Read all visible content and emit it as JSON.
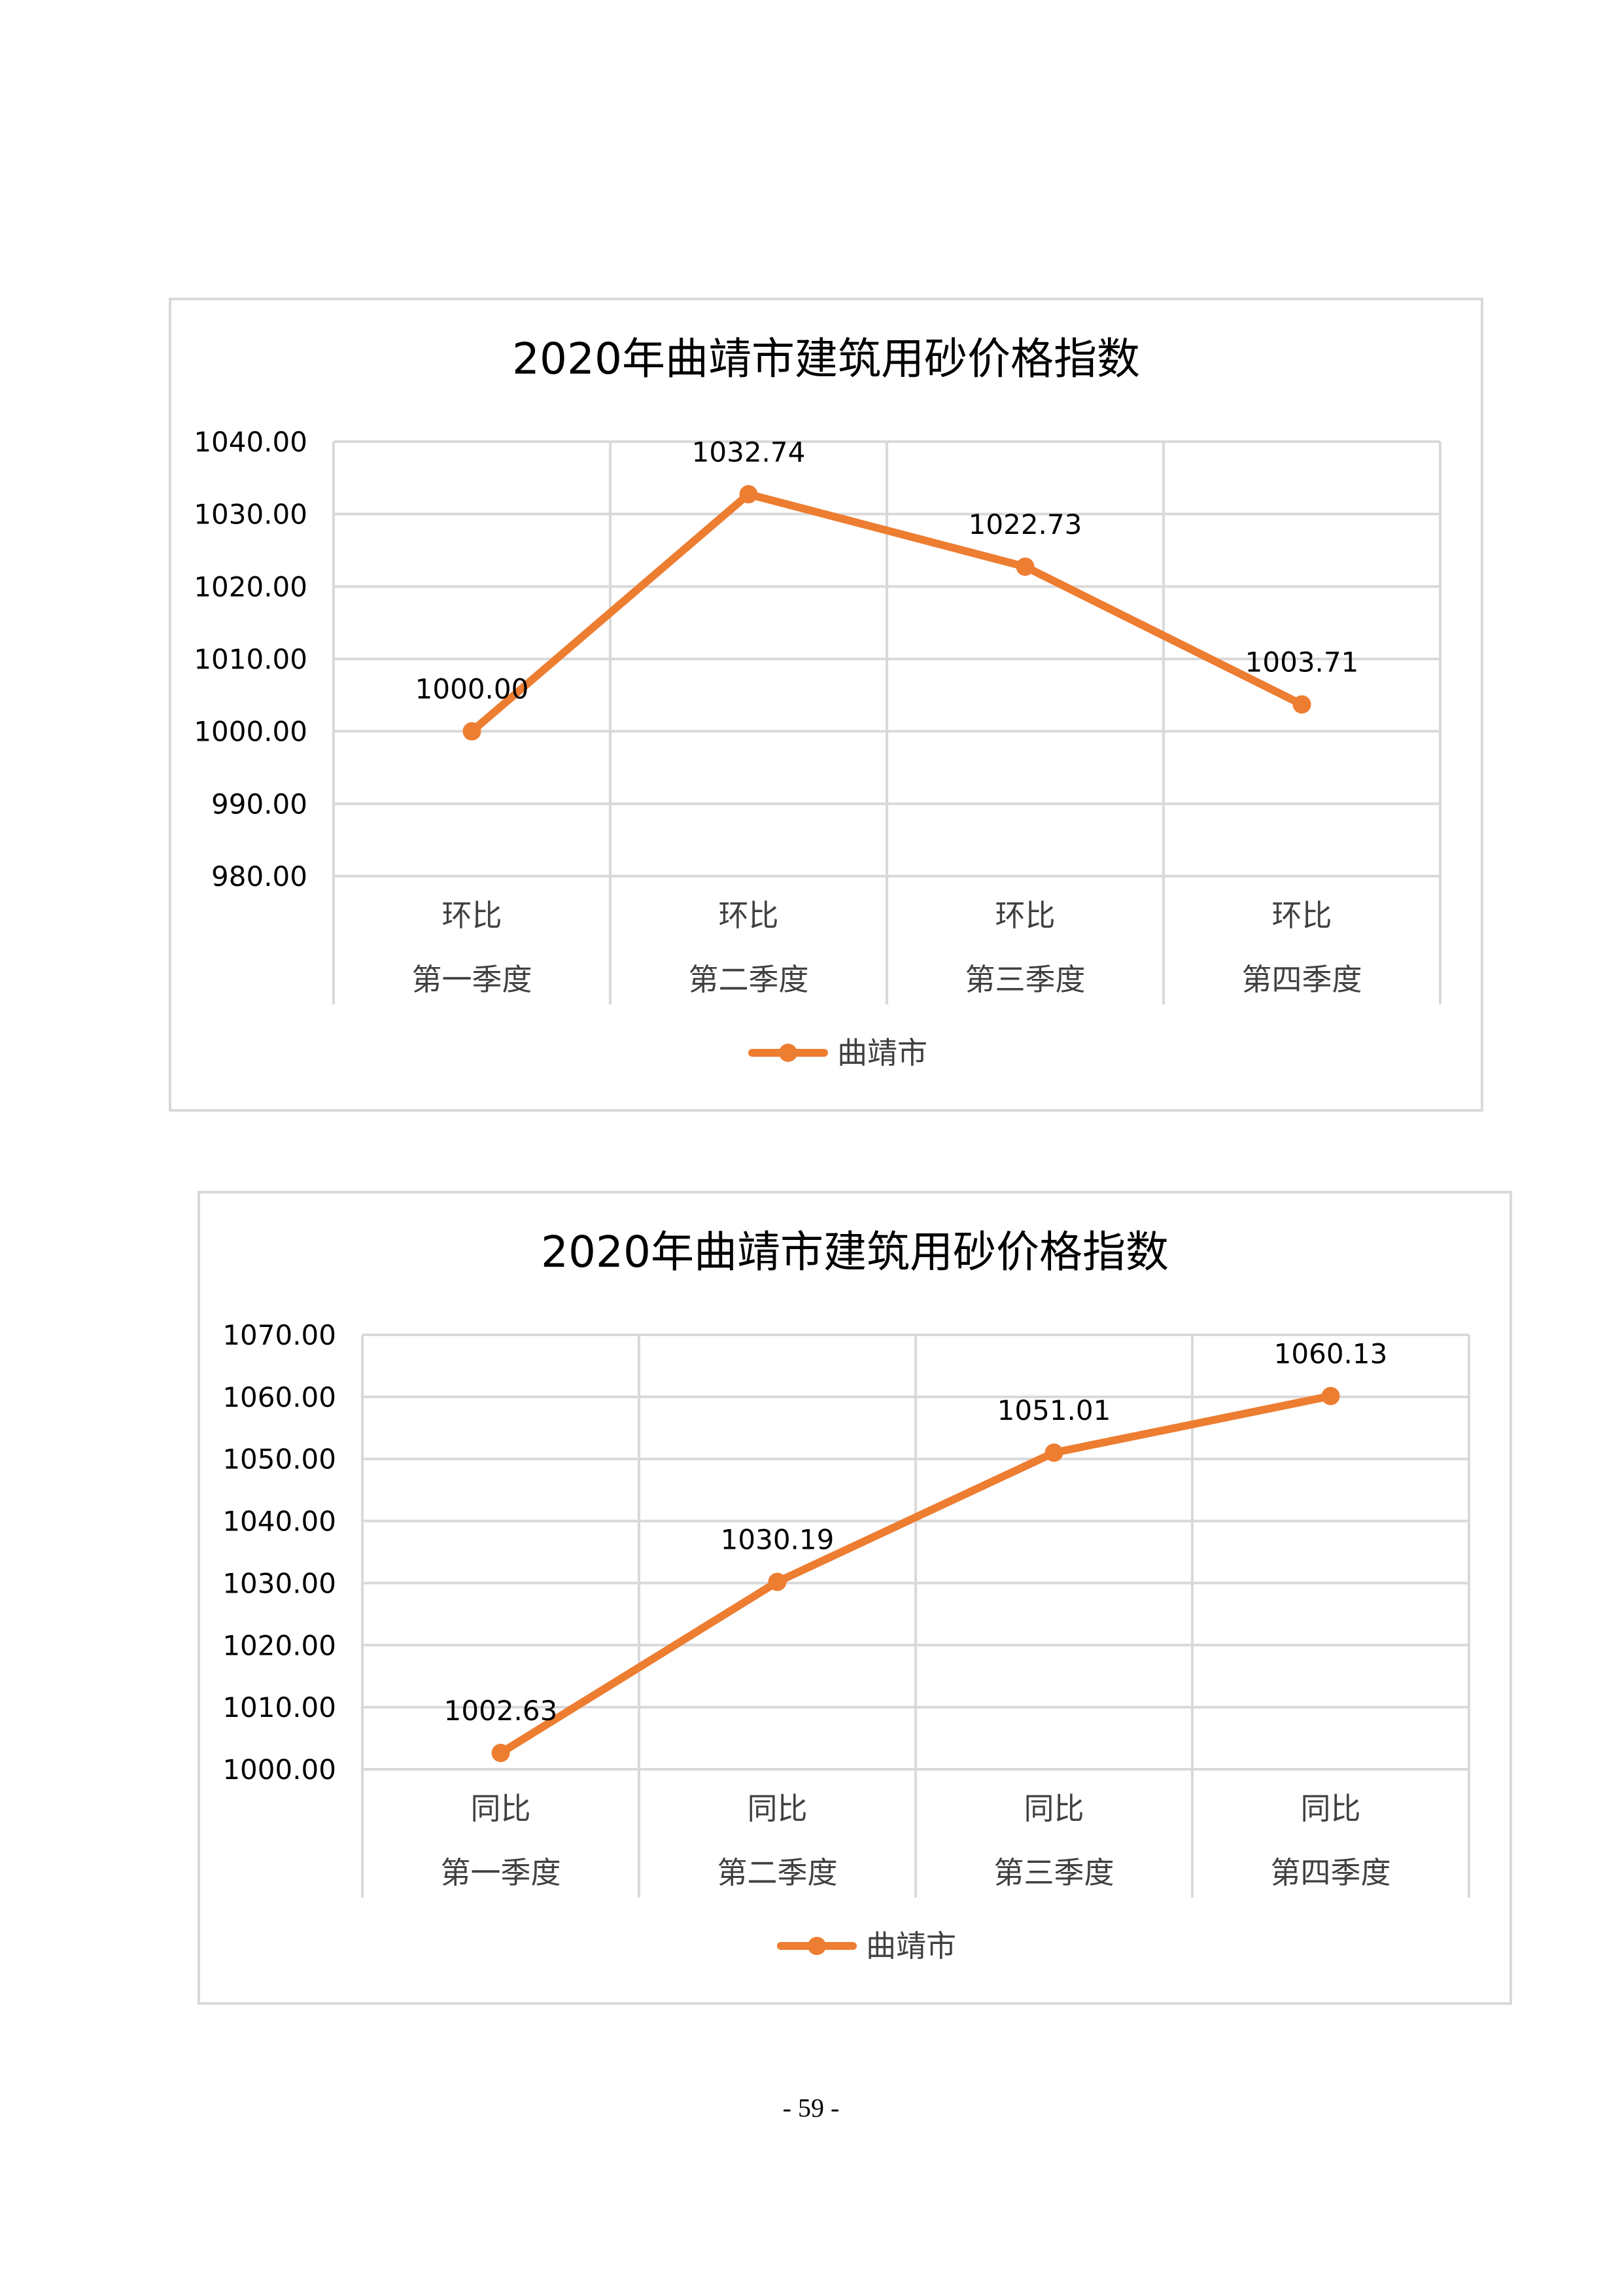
{
  "page": {
    "number": "- 59 -"
  },
  "colors": {
    "series": "#ed7d31",
    "grid": "#d9d9d9",
    "text": "#000000",
    "border": "#d9d9d9"
  },
  "chart_data": [
    {
      "type": "line",
      "title": "2020年曲靖市建筑用砂价格指数",
      "categories": [
        [
          "环比",
          "第一季度"
        ],
        [
          "环比",
          "第二季度"
        ],
        [
          "环比",
          "第三季度"
        ],
        [
          "环比",
          "第四季度"
        ]
      ],
      "series": [
        {
          "name": "曲靖市",
          "values": [
            1000.0,
            1032.74,
            1022.73,
            1003.71
          ]
        }
      ],
      "data_labels": [
        "1000.00",
        "1032.74",
        "1022.73",
        "1003.71"
      ],
      "ylim": [
        980,
        1040
      ],
      "yticks": [
        "980.00",
        "990.00",
        "1000.00",
        "1010.00",
        "1020.00",
        "1030.00",
        "1040.00"
      ],
      "grid": true,
      "legend": "bottom"
    },
    {
      "type": "line",
      "title": "2020年曲靖市建筑用砂价格指数",
      "categories": [
        [
          "同比",
          "第一季度"
        ],
        [
          "同比",
          "第二季度"
        ],
        [
          "同比",
          "第三季度"
        ],
        [
          "同比",
          "第四季度"
        ]
      ],
      "series": [
        {
          "name": "曲靖市",
          "values": [
            1002.63,
            1030.19,
            1051.01,
            1060.13
          ]
        }
      ],
      "data_labels": [
        "1002.63",
        "1030.19",
        "1051.01",
        "1060.13"
      ],
      "ylim": [
        1000,
        1070
      ],
      "yticks": [
        "1000.00",
        "1010.00",
        "1020.00",
        "1030.00",
        "1040.00",
        "1050.00",
        "1060.00",
        "1070.00"
      ],
      "grid": true,
      "legend": "bottom"
    }
  ]
}
